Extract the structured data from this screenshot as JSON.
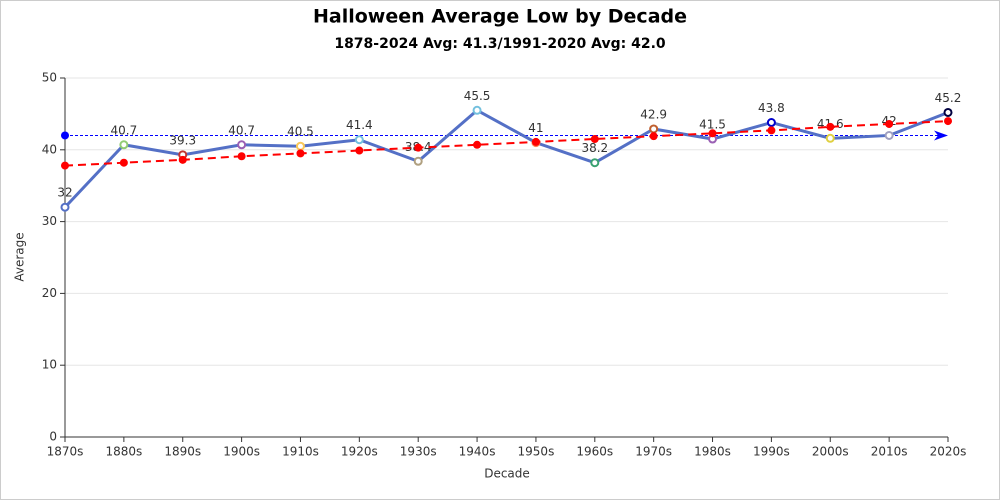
{
  "chart_data": {
    "type": "line",
    "title": "Halloween Average Low by Decade",
    "subtitle": "1878-2024 Avg: 41.3/1991-2020 Avg: 42.0",
    "x_label": "Decade",
    "y_label": "Average",
    "categories": [
      "1870s",
      "1880s",
      "1890s",
      "1900s",
      "1910s",
      "1920s",
      "1930s",
      "1940s",
      "1950s",
      "1960s",
      "1970s",
      "1980s",
      "1990s",
      "2000s",
      "2010s",
      "2020s"
    ],
    "series": [
      {
        "color": "#5470c6",
        "line_style": "solid",
        "data_labels": true,
        "marker_colors": [
          "#5470c6",
          "#91cc75",
          "#c23531",
          "#9a60b4",
          "#fac858",
          "#73c0de",
          "#b0a080",
          "#73c0de",
          "#fc8452",
          "#3ba272",
          "#c06030",
          "#9a60b4",
          "#0000cc",
          "#e0d040",
          "#a0a0c0",
          "#000040"
        ],
        "values": [
          32,
          40.7,
          39.3,
          40.7,
          40.5,
          41.4,
          38.4,
          45.5,
          41,
          38.2,
          42.9,
          41.5,
          43.8,
          41.6,
          42,
          45.2
        ]
      },
      {
        "color": "#ff0000",
        "line_style": "dashed",
        "data_labels": false,
        "values": [
          37.8,
          38.2,
          38.6,
          39.1,
          39.5,
          39.9,
          40.3,
          40.7,
          41.1,
          41.5,
          41.9,
          42.3,
          42.7,
          43.2,
          43.6,
          44.0
        ]
      }
    ],
    "reference_line": {
      "value": 42.0,
      "color": "#0000ff"
    },
    "ylim": [
      0,
      50
    ],
    "yticks": [
      0,
      10,
      20,
      30,
      40,
      50
    ],
    "grid": true
  }
}
